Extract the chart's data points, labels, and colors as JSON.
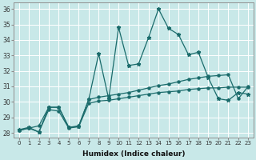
{
  "bg_color": "#c8e8e8",
  "line_color": "#1a6b6b",
  "xlabel": "Humidex (Indice chaleur)",
  "xlim": [
    -0.5,
    23.5
  ],
  "ylim": [
    27.7,
    36.4
  ],
  "xticks": [
    0,
    1,
    2,
    3,
    4,
    5,
    6,
    7,
    8,
    9,
    10,
    11,
    12,
    13,
    14,
    15,
    16,
    17,
    18,
    19,
    20,
    21,
    22,
    23
  ],
  "yticks": [
    28,
    29,
    30,
    31,
    32,
    33,
    34,
    35,
    36
  ],
  "line_main_x": [
    0,
    1,
    2,
    3,
    4,
    5,
    6,
    7,
    8,
    9,
    10,
    11,
    12,
    13,
    14,
    15,
    16,
    17,
    18,
    19,
    20,
    21,
    22,
    23
  ],
  "line_main_y": [
    28.2,
    28.35,
    28.05,
    29.65,
    29.65,
    28.35,
    28.4,
    30.15,
    33.1,
    30.2,
    34.8,
    32.35,
    32.45,
    34.15,
    36.0,
    34.75,
    34.35,
    33.05,
    33.2,
    31.55,
    30.2,
    30.1,
    30.6,
    30.5
  ],
  "line_upper_x": [
    0,
    1,
    2,
    3,
    4,
    5,
    6,
    7,
    8,
    9,
    10,
    11,
    12,
    13,
    14,
    15,
    16,
    17,
    18,
    19,
    20,
    21,
    22,
    23
  ],
  "line_upper_y": [
    28.15,
    28.3,
    28.45,
    29.65,
    29.65,
    28.35,
    28.45,
    30.15,
    30.3,
    30.4,
    30.5,
    30.6,
    30.75,
    30.9,
    31.05,
    31.15,
    31.3,
    31.45,
    31.55,
    31.65,
    31.7,
    31.75,
    30.2,
    31.0
  ],
  "line_lower_x": [
    0,
    1,
    2,
    3,
    4,
    5,
    6,
    7,
    8,
    9,
    10,
    11,
    12,
    13,
    14,
    15,
    16,
    17,
    18,
    19,
    20,
    21,
    22,
    23
  ],
  "line_lower_y": [
    28.15,
    28.3,
    28.05,
    29.5,
    29.4,
    28.3,
    28.4,
    29.9,
    30.05,
    30.1,
    30.2,
    30.3,
    30.4,
    30.5,
    30.6,
    30.65,
    30.7,
    30.8,
    30.85,
    30.9,
    30.9,
    30.95,
    30.95,
    30.95
  ]
}
